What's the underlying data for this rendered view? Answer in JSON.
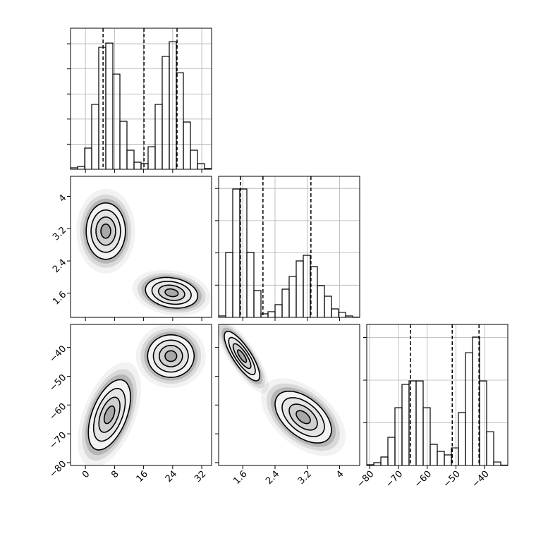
{
  "chart_data": {
    "type": "corner",
    "params": [
      {
        "lim": [
          -4.1,
          34.7
        ],
        "ticks": [
          0,
          8,
          16,
          24,
          32
        ]
      },
      {
        "lim": [
          1.0,
          4.5
        ],
        "ticks": [
          1.6,
          2.4,
          3.2,
          4.0
        ]
      },
      {
        "lim": [
          -81,
          -32
        ],
        "ticks": [
          {
            "value": -80,
            "label": "−80"
          },
          {
            "value": -70,
            "label": "−70"
          },
          {
            "value": -60,
            "label": "−60"
          },
          {
            "value": -50,
            "label": "−50"
          },
          {
            "value": -40,
            "label": "−40"
          }
        ]
      }
    ],
    "histograms": [
      {
        "bins": [
          -4.1,
          -2.16,
          -0.22,
          1.72,
          3.66,
          5.6,
          7.54,
          9.48,
          11.42,
          13.36,
          15.3,
          17.24,
          19.18,
          21.12,
          23.06,
          25.0,
          26.94,
          28.88,
          30.82,
          32.76,
          34.7
        ],
        "counts": [
          28,
          56,
          421,
          1292,
          2430,
          2514,
          1896,
          955,
          379,
          140,
          112,
          449,
          1292,
          2247,
          2542,
          1924,
          941,
          379,
          112,
          14
        ],
        "ylim": [
          0,
          2810
        ],
        "yticks": [
          500,
          1000,
          1500,
          2000,
          2500
        ],
        "quantiles": [
          4.85,
          16.1,
          25.2
        ]
      },
      {
        "bins": [
          1.0,
          1.175,
          1.35,
          1.525,
          1.7,
          1.875,
          2.05,
          2.225,
          2.4,
          2.575,
          2.75,
          2.925,
          3.1,
          3.275,
          3.45,
          3.625,
          3.8,
          3.975,
          4.15,
          4.325,
          4.5
        ],
        "counts": [
          22,
          1007,
          1991,
          1991,
          1007,
          416,
          55,
          88,
          197,
          438,
          635,
          875,
          963,
          788,
          492,
          328,
          131,
          77,
          22,
          5
        ],
        "ylim": [
          0,
          2188
        ],
        "yticks": [
          500,
          1000,
          1500,
          2000
        ],
        "quantiles": [
          1.54,
          2.1,
          3.29
        ]
      },
      {
        "bins": [
          -81,
          -78.55,
          -76.1,
          -73.65,
          -71.2,
          -68.75,
          -66.3,
          -63.85,
          -61.4,
          -58.95,
          -56.5,
          -54.05,
          -51.6,
          -49.15,
          -46.7,
          -44.25,
          -41.8,
          -39.35,
          -36.9,
          -34.45,
          -32
        ],
        "counts": [
          8,
          33,
          99,
          330,
          677,
          950,
          991,
          991,
          677,
          248,
          165,
          124,
          206,
          620,
          1322,
          1504,
          991,
          396,
          41,
          4
        ],
        "ylim": [
          0,
          1653
        ],
        "yticks": [
          500,
          1000,
          1500
        ],
        "quantiles": [
          -65.8,
          -51.3,
          -42
        ]
      }
    ],
    "pairs": [
      {
        "modes": [
          {
            "x": 5.6,
            "y": 3.14,
            "sx": 2.7,
            "sy": 0.35,
            "rho": 0.0
          },
          {
            "x": 23.7,
            "y": 1.61,
            "sx": 3.6,
            "sy": 0.19,
            "rho": -0.2
          }
        ]
      },
      {
        "modes": [
          {
            "x": 6.6,
            "y": -63.4,
            "sx": 2.9,
            "sy": 6.1,
            "rho": 0.5
          },
          {
            "x": 23.5,
            "y": -43.0,
            "sx": 3.2,
            "sy": 3.7,
            "rho": 0.0
          }
        ]
      },
      {
        "modes": [
          {
            "x": 1.58,
            "y": -43.0,
            "sx": 0.22,
            "sy": 4.3,
            "rho": -0.8
          },
          {
            "x": 3.1,
            "y": -64.2,
            "sx": 0.35,
            "sy": 4.5,
            "rho": -0.5
          }
        ]
      }
    ]
  }
}
